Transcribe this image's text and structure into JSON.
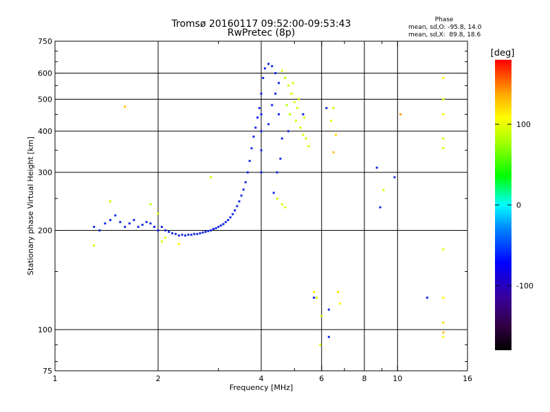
{
  "chart_data": {
    "type": "scatter",
    "title": "Tromsø 20160117 09:52:00-09:53:43",
    "subtitle": "RwPretec (8p)",
    "xlabel": "Frequency [MHz]",
    "ylabel": "Stationary phase Virtual Height [km]",
    "x_scale": "log",
    "y_scale": "log",
    "xlim": [
      1,
      16
    ],
    "ylim": [
      75,
      750
    ],
    "x_ticks": [
      1,
      2,
      4,
      6,
      8,
      10,
      16
    ],
    "y_ticks": [
      75,
      100,
      200,
      300,
      400,
      500,
      600,
      750
    ],
    "grid_x": [
      2,
      4,
      6,
      8,
      10
    ],
    "grid_y": [
      100,
      200,
      300,
      400,
      500,
      600
    ],
    "grid": true,
    "colorbar": {
      "label": "[deg]",
      "ticks": [
        100,
        0,
        -100
      ],
      "range": [
        -180,
        180
      ]
    },
    "phase_stats": {
      "heading": "Phase",
      "line_o": "mean, sd,O: -95.8, 14.0",
      "line_x": "mean, sd,X:  89.8, 18.6"
    },
    "series": [
      {
        "name": "O",
        "points": [
          [
            1.3,
            205,
            -110
          ],
          [
            1.35,
            200,
            -100
          ],
          [
            1.4,
            210,
            -120
          ],
          [
            1.45,
            215,
            -105
          ],
          [
            1.5,
            222,
            -110
          ],
          [
            1.55,
            212,
            -95
          ],
          [
            1.6,
            205,
            -100
          ],
          [
            1.65,
            210,
            -115
          ],
          [
            1.7,
            215,
            -110
          ],
          [
            1.75,
            205,
            -100
          ],
          [
            1.8,
            208,
            -105
          ],
          [
            1.85,
            212,
            -110
          ],
          [
            1.9,
            210,
            -95
          ],
          [
            1.95,
            205,
            -100
          ],
          [
            2.0,
            200,
            -105
          ],
          [
            2.05,
            205,
            -110
          ],
          [
            2.1,
            200,
            -100
          ],
          [
            2.15,
            198,
            -95
          ],
          [
            2.2,
            196,
            -110
          ],
          [
            2.25,
            195,
            -105
          ],
          [
            2.3,
            193,
            -100
          ],
          [
            2.35,
            194,
            -95
          ],
          [
            2.4,
            193,
            -110
          ],
          [
            2.45,
            194,
            -100
          ],
          [
            2.5,
            194,
            -105
          ],
          [
            2.55,
            195,
            -110
          ],
          [
            2.6,
            195,
            -100
          ],
          [
            2.65,
            196,
            -95
          ],
          [
            2.7,
            197,
            -105
          ],
          [
            2.75,
            198,
            -110
          ],
          [
            2.8,
            199,
            -100
          ],
          [
            2.85,
            200,
            -95
          ],
          [
            2.9,
            202,
            -105
          ],
          [
            2.95,
            203,
            -110
          ],
          [
            3.0,
            205,
            -100
          ],
          [
            3.05,
            207,
            -95
          ],
          [
            3.1,
            209,
            -105
          ],
          [
            3.15,
            212,
            -110
          ],
          [
            3.2,
            215,
            -100
          ],
          [
            3.25,
            219,
            -105
          ],
          [
            3.3,
            224,
            -110
          ],
          [
            3.35,
            230,
            -100
          ],
          [
            3.4,
            237,
            -95
          ],
          [
            3.45,
            245,
            -105
          ],
          [
            3.5,
            255,
            -110
          ],
          [
            3.55,
            266,
            -100
          ],
          [
            3.6,
            280,
            -95
          ],
          [
            3.65,
            300,
            -105
          ],
          [
            3.7,
            325,
            -110
          ],
          [
            3.75,
            355,
            -100
          ],
          [
            3.8,
            385,
            -105
          ],
          [
            3.85,
            410,
            -110
          ],
          [
            3.9,
            440,
            -100
          ],
          [
            3.95,
            470,
            -95
          ],
          [
            4.0,
            520,
            -105
          ],
          [
            4.05,
            580,
            -110
          ],
          [
            4.1,
            620,
            -100
          ],
          [
            4.2,
            640,
            -105
          ],
          [
            4.3,
            630,
            -110
          ],
          [
            4.4,
            600,
            -100
          ],
          [
            4.5,
            560,
            -95
          ],
          [
            4.0,
            300,
            -110
          ],
          [
            4.0,
            350,
            -100
          ],
          [
            4.0,
            400,
            -105
          ],
          [
            4.0,
            450,
            -110
          ],
          [
            4.2,
            420,
            -100
          ],
          [
            4.3,
            480,
            -105
          ],
          [
            4.4,
            520,
            -110
          ],
          [
            4.5,
            450,
            -100
          ],
          [
            4.35,
            260,
            -105
          ],
          [
            4.45,
            300,
            -110
          ],
          [
            4.55,
            330,
            -100
          ],
          [
            4.6,
            380,
            -105
          ],
          [
            4.8,
            400,
            -115
          ],
          [
            5.3,
            450,
            -110
          ],
          [
            6.2,
            470,
            -100
          ],
          [
            8.7,
            310,
            -110
          ],
          [
            8.9,
            235,
            -100
          ],
          [
            9.8,
            290,
            -105
          ],
          [
            12.2,
            125,
            -110
          ],
          [
            6.3,
            95,
            -100
          ],
          [
            5.7,
            125,
            -110
          ],
          [
            6.3,
            115,
            -120
          ]
        ]
      },
      {
        "name": "X",
        "points": [
          [
            1.3,
            180,
            95
          ],
          [
            1.45,
            245,
            90
          ],
          [
            1.6,
            475,
            130
          ],
          [
            1.9,
            240,
            85
          ],
          [
            2.0,
            225,
            90
          ],
          [
            2.05,
            185,
            95
          ],
          [
            2.1,
            190,
            100
          ],
          [
            2.3,
            182,
            110
          ],
          [
            2.85,
            290,
            90
          ],
          [
            4.6,
            610,
            95
          ],
          [
            4.7,
            580,
            85
          ],
          [
            4.8,
            550,
            90
          ],
          [
            4.9,
            520,
            100
          ],
          [
            5.0,
            490,
            95
          ],
          [
            5.1,
            470,
            90
          ],
          [
            4.85,
            450,
            85
          ],
          [
            5.05,
            430,
            95
          ],
          [
            5.2,
            410,
            90
          ],
          [
            5.3,
            390,
            100
          ],
          [
            5.4,
            380,
            95
          ],
          [
            5.5,
            360,
            90
          ],
          [
            4.75,
            480,
            85
          ],
          [
            4.95,
            560,
            95
          ],
          [
            5.15,
            500,
            90
          ],
          [
            5.35,
            440,
            95
          ],
          [
            4.45,
            250,
            90
          ],
          [
            4.6,
            240,
            100
          ],
          [
            4.7,
            235,
            95
          ],
          [
            5.7,
            130,
            110
          ],
          [
            5.8,
            125,
            95
          ],
          [
            6.0,
            110,
            90
          ],
          [
            5.95,
            90,
            100
          ],
          [
            6.5,
            345,
            130
          ],
          [
            6.6,
            390,
            120
          ],
          [
            6.7,
            130,
            120
          ],
          [
            6.8,
            120,
            110
          ],
          [
            6.4,
            430,
            100
          ],
          [
            6.5,
            470,
            90
          ],
          [
            9.1,
            265,
            95
          ],
          [
            10.2,
            450,
            140
          ],
          [
            13.6,
            580,
            110
          ],
          [
            13.6,
            500,
            100
          ],
          [
            13.6,
            450,
            105
          ],
          [
            13.6,
            380,
            90
          ],
          [
            13.6,
            355,
            95
          ],
          [
            13.6,
            175,
            100
          ],
          [
            13.6,
            125,
            110
          ],
          [
            13.6,
            105,
            120
          ],
          [
            13.6,
            98,
            130
          ],
          [
            13.6,
            95,
            105
          ]
        ]
      }
    ]
  }
}
